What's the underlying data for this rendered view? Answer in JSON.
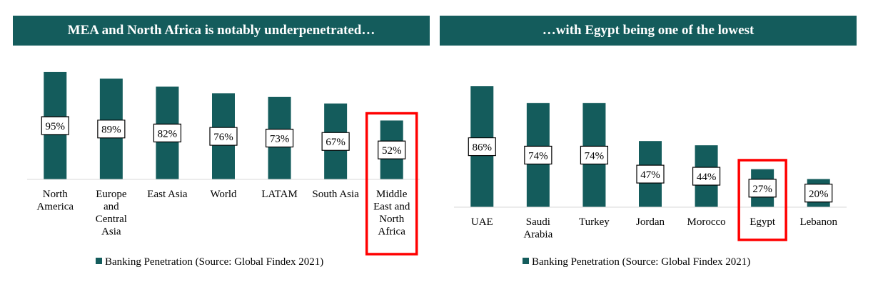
{
  "colors": {
    "bar": "#145c5c",
    "header_bg": "#145c5c",
    "highlight": "#ff0000",
    "axis": "#d9d9d9"
  },
  "chart_data": [
    {
      "type": "bar",
      "title": "MEA and North Africa is notably underpenetrated…",
      "categories": [
        "North America",
        "Europe and Central Asia",
        "East Asia",
        "World",
        "LATAM",
        "South Asia",
        "Middle East and North Africa"
      ],
      "category_lines": [
        [
          "North",
          "America"
        ],
        [
          "Europe",
          "and",
          "Central",
          "Asia"
        ],
        [
          "East Asia"
        ],
        [
          "World"
        ],
        [
          "LATAM"
        ],
        [
          "South Asia"
        ],
        [
          "Middle",
          "East and",
          "North",
          "Africa"
        ]
      ],
      "series": [
        {
          "name": "Banking Penetration (Source: Global Findex 2021)",
          "values": [
            95,
            89,
            82,
            76,
            73,
            67,
            52
          ]
        }
      ],
      "data_labels": [
        "95%",
        "89%",
        "82%",
        "76%",
        "73%",
        "67%",
        "52%"
      ],
      "highlight_category": "Middle East and North Africa",
      "legend": "bottom",
      "grid": false,
      "xlabel": "",
      "ylabel": "",
      "ylim": [
        0,
        100
      ]
    },
    {
      "type": "bar",
      "title": "…with Egypt being one of the lowest",
      "categories": [
        "UAE",
        "Saudi Arabia",
        "Turkey",
        "Jordan",
        "Morocco",
        "Egypt",
        "Lebanon"
      ],
      "category_lines": [
        [
          "UAE"
        ],
        [
          "Saudi",
          "Arabia"
        ],
        [
          "Turkey"
        ],
        [
          "Jordan"
        ],
        [
          "Morocco"
        ],
        [
          "Egypt"
        ],
        [
          "Lebanon"
        ]
      ],
      "series": [
        {
          "name": "Banking Penetration (Source: Global Findex 2021)",
          "values": [
            86,
            74,
            74,
            47,
            44,
            27,
            20
          ]
        }
      ],
      "data_labels": [
        "86%",
        "74%",
        "74%",
        "47%",
        "44%",
        "27%",
        "20%"
      ],
      "highlight_category": "Egypt",
      "legend": "bottom",
      "grid": false,
      "xlabel": "",
      "ylabel": "",
      "ylim": [
        0,
        100
      ]
    }
  ]
}
